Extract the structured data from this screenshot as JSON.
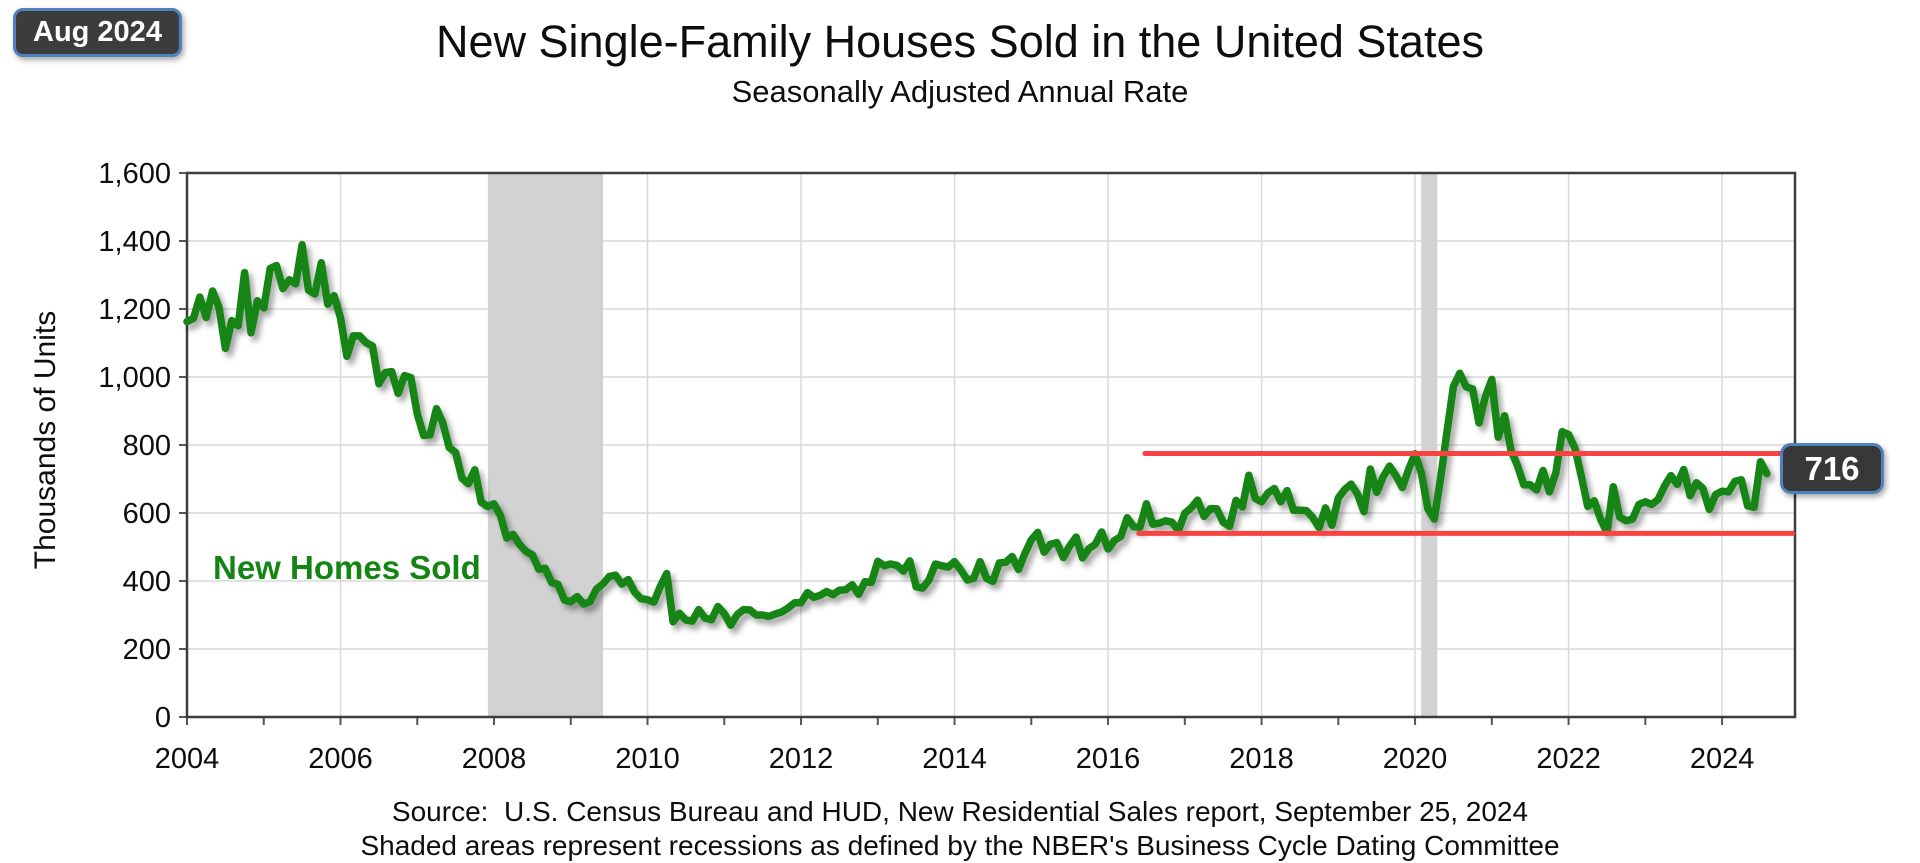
{
  "header": {
    "date_badge": "Aug 2024"
  },
  "footer": {
    "source": "Source:  U.S. Census Bureau and HUD, New Residential Sales report, September 25, 2024",
    "note": "Shaded areas represent recessions as defined by the NBER's Business Cycle Dating Committee"
  },
  "chart_data": {
    "type": "line",
    "title": "New Single-Family Houses Sold in the United States",
    "subtitle": "Seasonally Adjusted Annual Rate",
    "ylabel": "Thousands of Units",
    "xlabel": "",
    "series_label": "New Homes Sold",
    "grid": true,
    "ylim": [
      0,
      1600
    ],
    "xlim": [
      2004,
      2024.95
    ],
    "colors": {
      "series_green": "#148514",
      "reference_red": "#f74341",
      "recession_band": "#d2d2d2",
      "gridline": "#d9d9d9",
      "plot_border": "#3d3d3d",
      "tick": "#555555",
      "badge_background": "#3c3c3c",
      "badge_border": "#4f81bd"
    },
    "y_ticks": [
      {
        "value": 0,
        "label": "0"
      },
      {
        "value": 200,
        "label": "200"
      },
      {
        "value": 400,
        "label": "400"
      },
      {
        "value": 600,
        "label": "600"
      },
      {
        "value": 800,
        "label": "800"
      },
      {
        "value": 1000,
        "label": "1,000"
      },
      {
        "value": 1200,
        "label": "1,200"
      },
      {
        "value": 1400,
        "label": "1,400"
      },
      {
        "value": 1600,
        "label": "1,600"
      }
    ],
    "x_ticks": [
      {
        "value": 2004,
        "label": "2004"
      },
      {
        "value": 2006,
        "label": "2006"
      },
      {
        "value": 2008,
        "label": "2008"
      },
      {
        "value": 2010,
        "label": "2010"
      },
      {
        "value": 2012,
        "label": "2012"
      },
      {
        "value": 2014,
        "label": "2014"
      },
      {
        "value": 2016,
        "label": "2016"
      },
      {
        "value": 2018,
        "label": "2018"
      },
      {
        "value": 2020,
        "label": "2020"
      },
      {
        "value": 2022,
        "label": "2022"
      },
      {
        "value": 2024,
        "label": "2024"
      }
    ],
    "recession_bands": [
      {
        "from": 2007.92,
        "to": 2009.42
      },
      {
        "from": 2020.08,
        "to": 2020.29
      }
    ],
    "reference_lines": [
      {
        "value": 775,
        "from_x": 2016.48,
        "to_x": 2024.84
      },
      {
        "value": 540,
        "from_x": 2016.4,
        "to_x": 2024.92
      }
    ],
    "latest_point": {
      "date": "Aug 2024",
      "value": 716,
      "label": "716"
    },
    "series": [
      {
        "name": "New Homes Sold",
        "color": "#148514",
        "frequency": "monthly",
        "start_year": 2004,
        "start_month": 1,
        "values": [
          1163,
          1172,
          1235,
          1175,
          1253,
          1205,
          1084,
          1166,
          1151,
          1307,
          1130,
          1224,
          1203,
          1319,
          1328,
          1260,
          1286,
          1274,
          1389,
          1255,
          1244,
          1336,
          1214,
          1239,
          1174,
          1061,
          1121,
          1121,
          1101,
          1091,
          980,
          1013,
          1016,
          952,
          1004,
          998,
          891,
          828,
          830,
          907,
          865,
          793,
          778,
          702,
          686,
          727,
          632,
          619,
          627,
          593,
          526,
          537,
          507,
          487,
          477,
          435,
          437,
          396,
          390,
          344,
          339,
          354,
          332,
          339,
          376,
          391,
          413,
          417,
          391,
          404,
          367,
          348,
          345,
          338,
          384,
          422,
          280,
          305,
          285,
          282,
          316,
          291,
          286,
          325,
          304,
          270,
          301,
          316,
          315,
          300,
          300,
          296,
          303,
          309,
          321,
          336,
          336,
          366,
          352,
          358,
          369,
          360,
          373,
          374,
          389,
          361,
          398,
          396,
          458,
          445,
          450,
          446,
          429,
          459,
          383,
          379,
          403,
          450,
          445,
          441,
          457,
          432,
          403,
          408,
          457,
          408,
          399,
          453,
          455,
          472,
          434,
          481,
          521,
          543,
          485,
          508,
          513,
          469,
          503,
          529,
          468,
          495,
          508,
          544,
          494,
          519,
          531,
          586,
          560,
          558,
          627,
          567,
          570,
          577,
          573,
          548,
          599,
          615,
          638,
          590,
          613,
          612,
          573,
          561,
          637,
          618,
          711,
          643,
          633,
          659,
          672,
          633,
          666,
          608,
          608,
          607,
          587,
          557,
          615,
          564,
          644,
          669,
          685,
          656,
          604,
          729,
          661,
          706,
          738,
          710,
          675,
          729,
          774,
          716,
          612,
          582,
          704,
          839,
          972,
          1011,
          971,
          965,
          865,
          943,
          993,
          823,
          886,
          784,
          740,
          683,
          683,
          668,
          725,
          662,
          717,
          839,
          831,
          790,
          707,
          619,
          636,
          582,
          543,
          677,
          588,
          577,
          582,
          625,
          633,
          625,
          640,
          679,
          710,
          684,
          728,
          651,
          689,
          672,
          611,
          654,
          664,
          662,
          693,
          698,
          621,
          617,
          751,
          716
        ]
      }
    ]
  }
}
